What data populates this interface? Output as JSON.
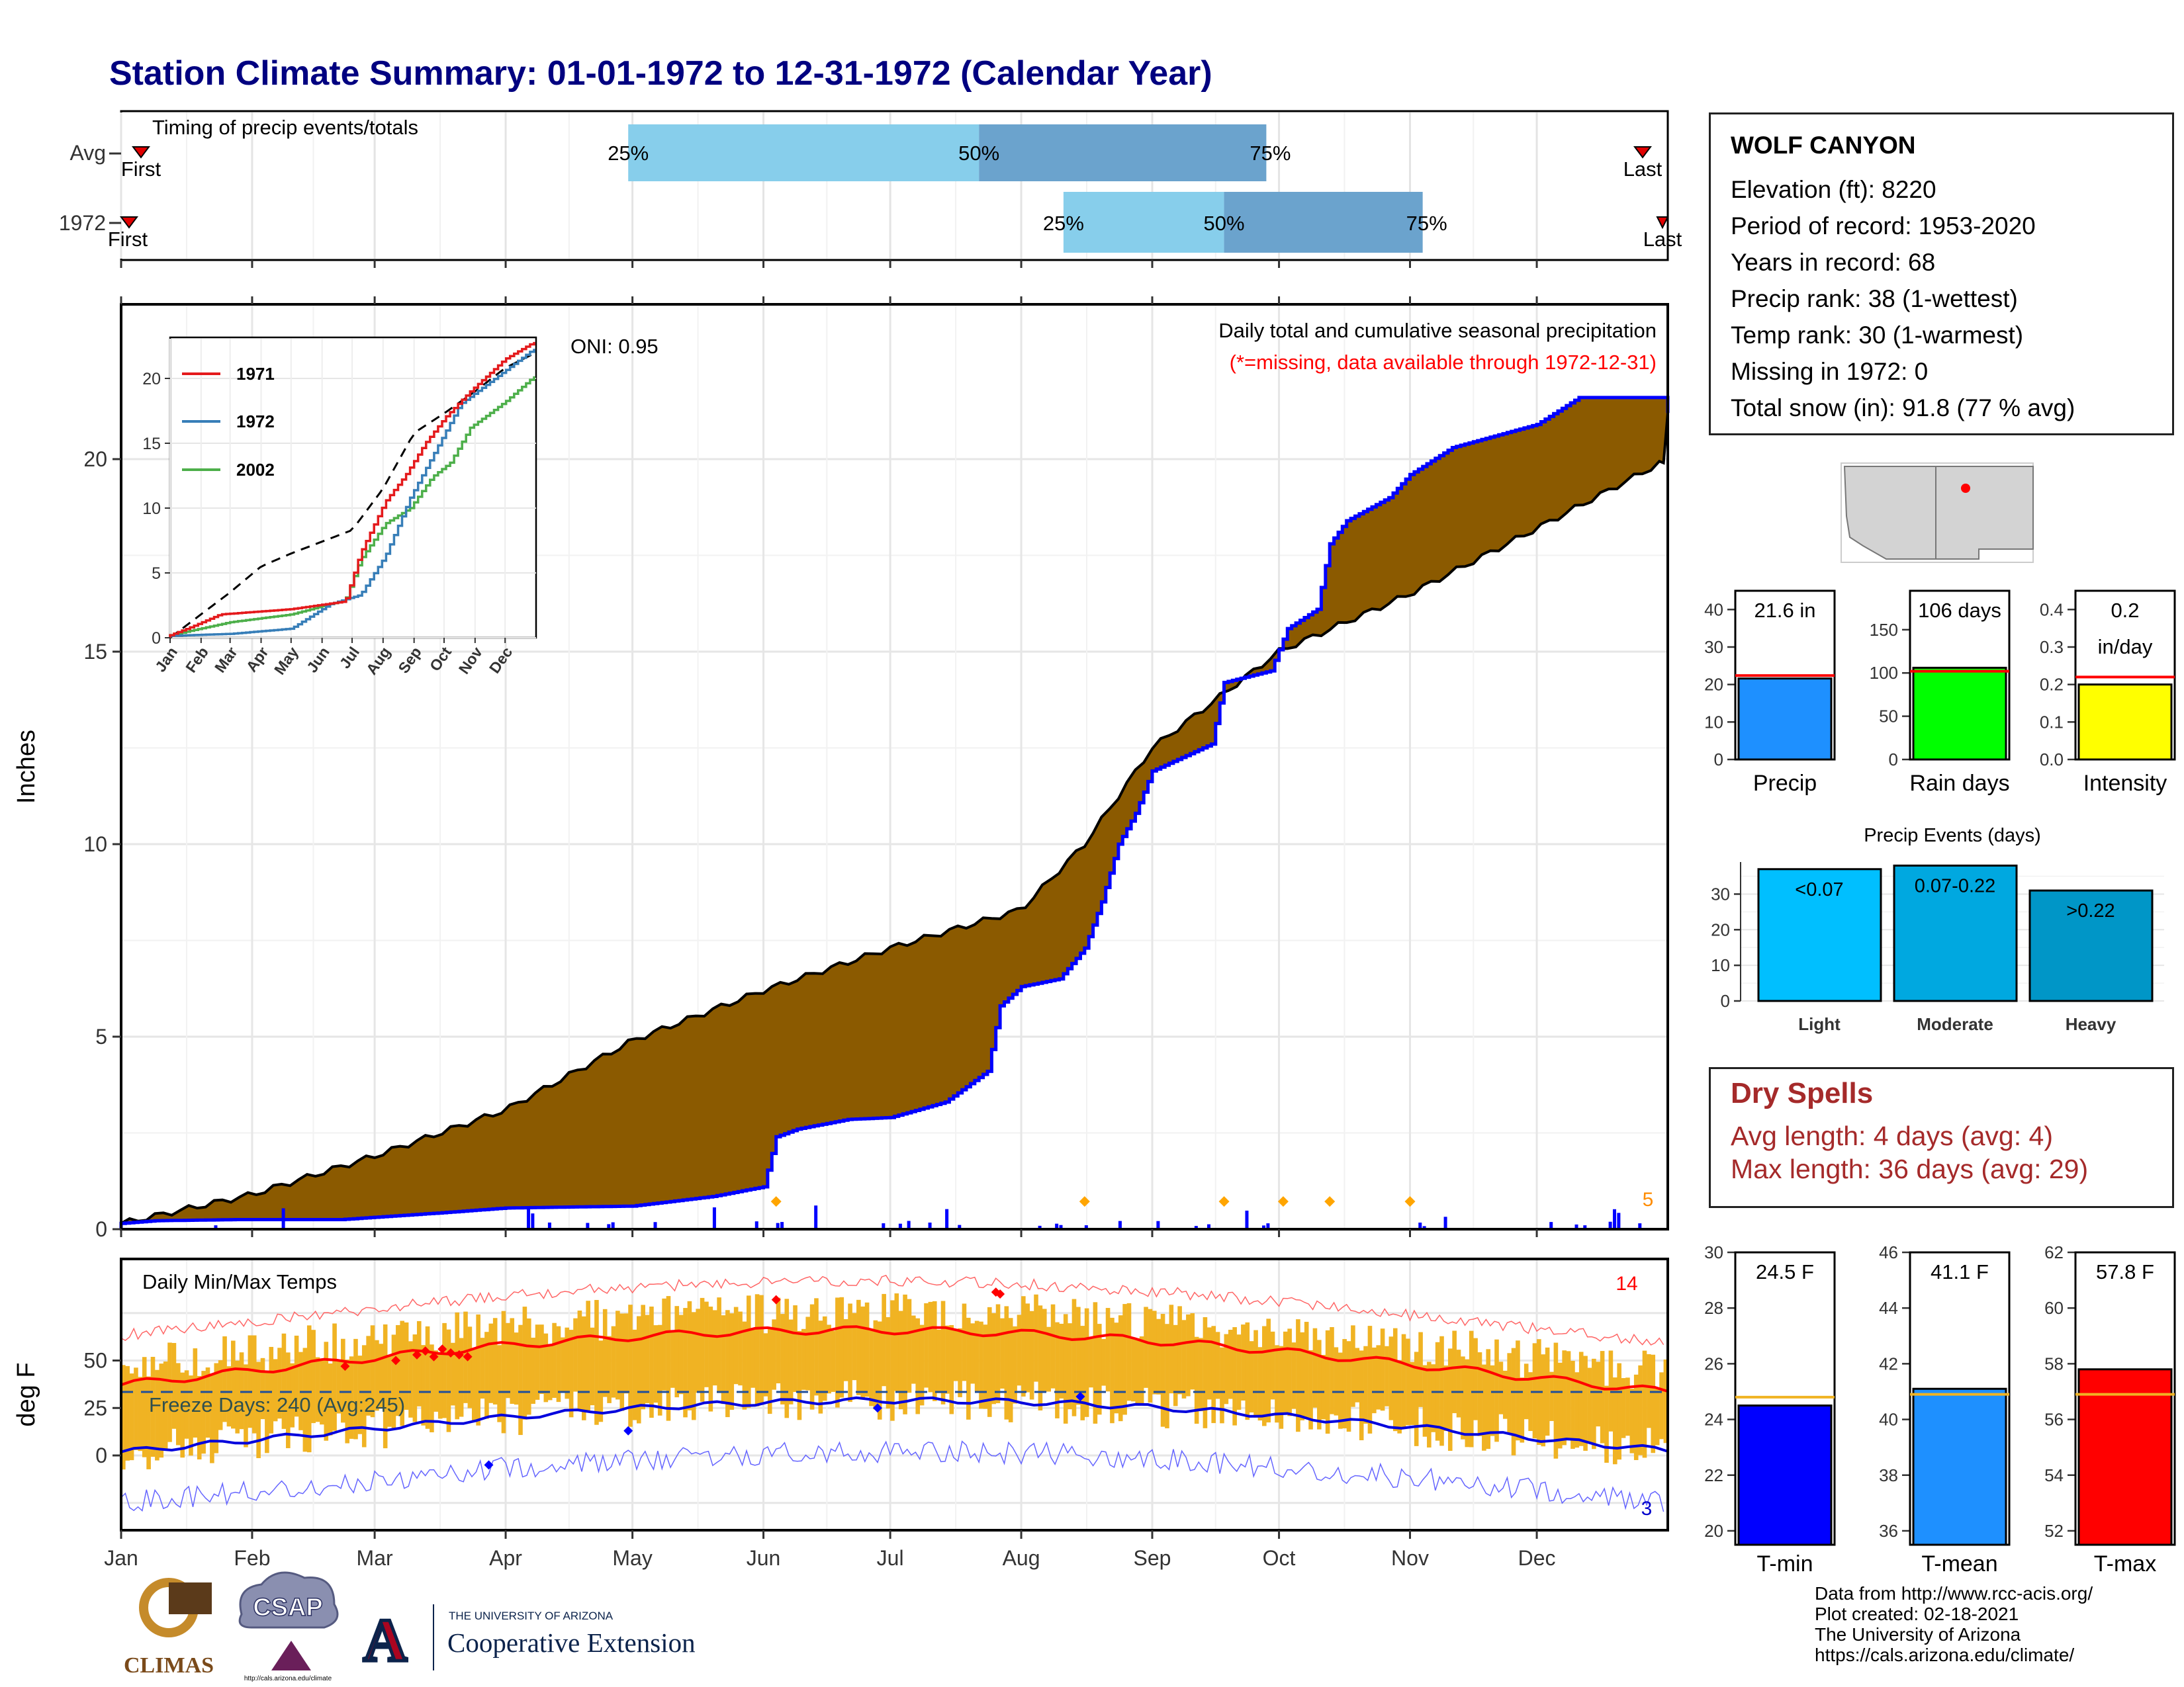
{
  "page": {
    "title": "Station Climate Summary: 01-01-1972 to 12-31-1972 (Calendar Year)",
    "colors": {
      "title": "#000080",
      "precip_area": "#8b5a00",
      "cumulative_line": "#0000ff",
      "temp_bar": "#f0b323"
    }
  },
  "station": {
    "name": "WOLF CANYON",
    "lines": [
      "Elevation (ft): 8220",
      "Period of record: 1953-2020",
      "Years in record: 68",
      "Precip rank: 38 (1-wettest)",
      "Temp rank: 30 (1-warmest)",
      "Missing in 1972: 0",
      "Total snow (in): 91.8 (77 % avg)"
    ]
  },
  "timing": {
    "title": "Timing of precip events/totals",
    "rows": [
      {
        "label": "Avg",
        "first": "First",
        "last": "Last",
        "p25_day": 120,
        "p50_day": 203,
        "p75_day": 271
      },
      {
        "label": "1972",
        "first": "First",
        "last": "Last",
        "p25_day": 223,
        "p50_day": 261,
        "p75_day": 308
      }
    ],
    "pct_labels": [
      "25%",
      "50%",
      "75%"
    ]
  },
  "precip": {
    "ylabel": "Inches",
    "title": "Daily total and cumulative seasonal precipitation",
    "note": "(*=missing, data available through 1972-12-31)",
    "oni": "ONI: 0.95",
    "count_label": "5",
    "month_labels": [
      "Jan",
      "Feb",
      "Mar",
      "Apr",
      "May",
      "Jun",
      "Jul",
      "Aug",
      "Sep",
      "Oct",
      "Nov",
      "Dec"
    ],
    "yticks": [
      "0",
      "5",
      "10",
      "15",
      "20"
    ]
  },
  "inset": {
    "legend": [
      "1971",
      "1972",
      "2002"
    ],
    "legend_colors": [
      "#e41a1c",
      "#377eb8",
      "#4daf4a"
    ],
    "yticks": [
      "0",
      "5",
      "10",
      "15",
      "20"
    ],
    "month_labels": [
      "Jan",
      "Feb",
      "Mar",
      "Apr",
      "May",
      "Jun",
      "Jul",
      "Aug",
      "Sep",
      "Oct",
      "Nov",
      "Dec"
    ]
  },
  "temps": {
    "ylabel": "deg F",
    "title": "Daily Min/Max Temps",
    "freeze": "Freeze Days: 240 (Avg:245)",
    "record_high_count": "14",
    "record_low_count": "3",
    "yticks": [
      "0",
      "25",
      "50"
    ]
  },
  "summary_bars": {
    "precip": {
      "label": "Precip",
      "value_label": "21.6 in",
      "value": 21.6,
      "avg": 22.4,
      "ylim": [
        0,
        45
      ],
      "yticks": [
        "0",
        "10",
        "20",
        "30",
        "40"
      ],
      "color": "#1e90ff"
    },
    "rain_days": {
      "label": "Rain days",
      "value_label": "106 days",
      "value": 106,
      "avg": 102,
      "ylim": [
        0,
        195
      ],
      "yticks": [
        "0",
        "50",
        "100",
        "150"
      ],
      "color": "#00ff00"
    },
    "intensity": {
      "label": "Intensity",
      "value_label": "0.2",
      "value_label2": "in/day",
      "value": 0.2,
      "avg": 0.22,
      "ylim": [
        0,
        0.45
      ],
      "yticks": [
        "0.0",
        "0.1",
        "0.2",
        "0.3",
        "0.4"
      ],
      "color": "#ffff00"
    }
  },
  "events": {
    "title": "Precip Events (days)",
    "categories": [
      "Light",
      "Moderate",
      "Heavy"
    ],
    "bar_labels": [
      "<0.07",
      "0.07-0.22",
      ">0.22"
    ],
    "values": [
      37,
      38,
      31
    ],
    "ylim": [
      0,
      39
    ],
    "yticks": [
      "0",
      "10",
      "20",
      "30"
    ],
    "colors": [
      "#00bfff",
      "#00a8e0",
      "#0096c7"
    ]
  },
  "dry_spells": {
    "title": "Dry Spells",
    "lines": [
      "Avg length: 4 days (avg: 4)",
      "Max length: 36 days (avg: 29)"
    ],
    "color": "#a52a2a"
  },
  "temp_bars": {
    "tmin": {
      "label": "T-min",
      "value_label": "24.5 F",
      "value": 24.5,
      "avg": 24.8,
      "ylim": [
        19.5,
        30
      ],
      "yticks": [
        "20",
        "22",
        "24",
        "26",
        "28",
        "30"
      ],
      "color": "#0000ff"
    },
    "tmean": {
      "label": "T-mean",
      "value_label": "41.1 F",
      "value": 41.1,
      "avg": 40.9,
      "ylim": [
        35.5,
        46
      ],
      "yticks": [
        "36",
        "38",
        "40",
        "42",
        "44",
        "46"
      ],
      "color": "#1e90ff"
    },
    "tmax": {
      "label": "T-max",
      "value_label": "57.8 F",
      "value": 57.8,
      "avg": 56.9,
      "ylim": [
        51.5,
        62
      ],
      "yticks": [
        "52",
        "54",
        "56",
        "58",
        "60",
        "62"
      ],
      "color": "#ff0000"
    }
  },
  "footer": {
    "lines": [
      "Data from http://www.rcc-acis.org/",
      "Plot created: 02-18-2021",
      "The University of Arizona",
      "https://cals.arizona.edu/climate/"
    ],
    "logos": {
      "climas": "CLIMAS",
      "csap": "CSAP",
      "csap_url": "http://cals.arizona.edu/climate",
      "ua_small": "THE UNIVERSITY OF ARIZONA",
      "ua_big": "Cooperative Extension"
    }
  }
}
